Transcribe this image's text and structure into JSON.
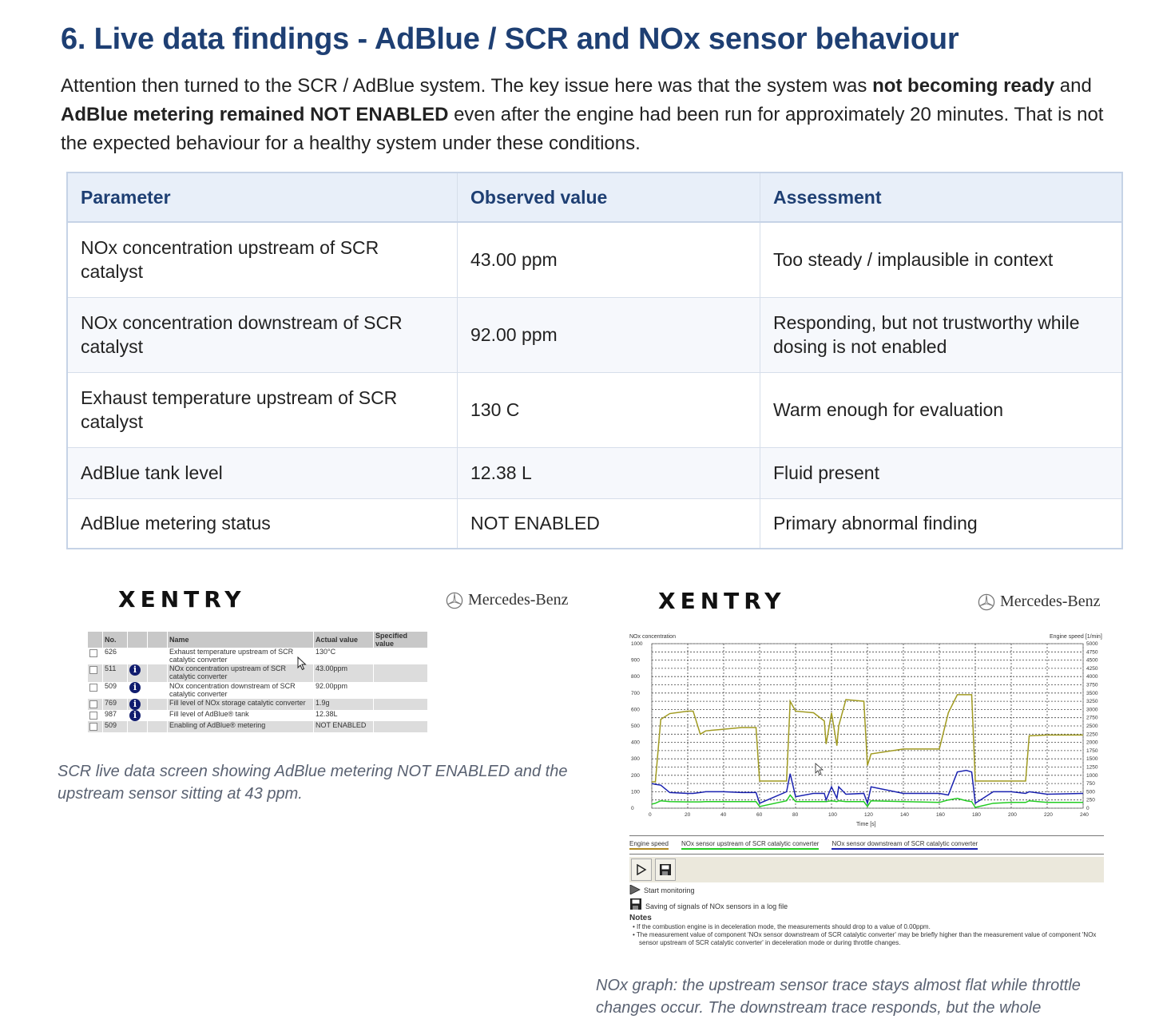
{
  "section": {
    "title": "6. Live data findings - AdBlue / SCR and NOx sensor behaviour",
    "intro_parts": [
      "Attention then turned to the SCR / AdBlue system. The key issue here was that the system was ",
      "not becoming ready",
      " and ",
      "AdBlue metering remained NOT ENABLED",
      " even after the engine had been run for approximately 20 minutes. That is not the expected behaviour for a healthy system under these conditions."
    ]
  },
  "findings_table": {
    "headers": [
      "Parameter",
      "Observed value",
      "Assessment"
    ],
    "rows": [
      {
        "parameter": "NOx concentration upstream of SCR catalyst",
        "value": "43.00 ppm",
        "assessment": "Too steady / implausible in context"
      },
      {
        "parameter": "NOx concentration downstream of SCR catalyst",
        "value": "92.00 ppm",
        "assessment": "Responding, but not trustworthy while dosing is not enabled"
      },
      {
        "parameter": "Exhaust temperature upstream of SCR catalyst",
        "value": "130 C",
        "assessment": "Warm enough for evaluation"
      },
      {
        "parameter": "AdBlue tank level",
        "value": "12.38 L",
        "assessment": "Fluid present"
      },
      {
        "parameter": "AdBlue metering status",
        "value": "NOT ENABLED",
        "assessment": "Primary abnormal finding"
      }
    ]
  },
  "screenshot_left": {
    "brand": "XENTRY",
    "maker": "Mercedes-Benz",
    "headers": [
      "No.",
      "",
      "",
      "Name",
      "Actual value",
      "Specified value"
    ],
    "rows": [
      {
        "no": "626",
        "info": false,
        "name": "Exhaust temperature upstream of SCR catalytic converter",
        "actual": "130°C"
      },
      {
        "no": "511",
        "info": true,
        "name": "NOx concentration upstream of SCR catalytic converter",
        "actual": "43.00ppm"
      },
      {
        "no": "509",
        "info": true,
        "name": "NOx concentration downstream of SCR catalytic converter",
        "actual": "92.00ppm"
      },
      {
        "no": "769",
        "info": true,
        "name": "Fill level of NOx storage catalytic converter",
        "actual": "1.9g"
      },
      {
        "no": "987",
        "info": true,
        "name": "Fill level of AdBlue® tank",
        "actual": "12.38L"
      },
      {
        "no": "509",
        "info": false,
        "name": "Enabling of AdBlue® metering",
        "actual": "NOT ENABLED"
      }
    ],
    "caption": "SCR live data screen showing AdBlue metering NOT ENABLED and the upstream sensor sitting at 43 ppm."
  },
  "screenshot_right": {
    "brand": "XENTRY",
    "maker": "Mercedes-Benz",
    "legend": [
      {
        "label": "Engine speed",
        "color": "#a09a20"
      },
      {
        "label": "NOx sensor upstream of SCR catalytic converter",
        "color": "#22cc22"
      },
      {
        "label": "NOx sensor downstream of SCR catalytic converter",
        "color": "#1a22b0"
      }
    ],
    "toolbar": {
      "play_label": "Start monitoring",
      "save_label": "Saving of signals of NOx sensors in a log file"
    },
    "notes_title": "Notes",
    "notes": [
      "If the combustion engine is in deceleration mode, the measurements should drop to a value of 0.00ppm.",
      "The measurement value of component 'NOx sensor downstream of SCR catalytic converter' may be briefly higher than the measurement value of component 'NOx sensor upstream of SCR catalytic converter' in deceleration mode or during throttle changes."
    ],
    "caption": "NOx graph: the upstream sensor trace stays almost flat while throttle changes occur. The downstream trace responds, but the whole"
  },
  "chart_data": {
    "type": "line",
    "title": "",
    "xlabel": "Time [s]",
    "ylabel": "NOx concentration",
    "y2label": "Engine speed [1/min]",
    "xlim": [
      0,
      240
    ],
    "ylim": [
      0,
      1000
    ],
    "y2lim": [
      0,
      5000
    ],
    "x_ticks": [
      0,
      20,
      40,
      60,
      80,
      100,
      120,
      140,
      160,
      180,
      200,
      220,
      240
    ],
    "y_ticks": [
      0,
      100,
      200,
      300,
      400,
      500,
      600,
      700,
      800,
      900,
      1000
    ],
    "y2_ticks": [
      0,
      250,
      500,
      750,
      1000,
      1250,
      1500,
      1750,
      2000,
      2250,
      2500,
      2750,
      3000,
      3250,
      3500,
      3750,
      4000,
      4250,
      4500,
      4750,
      5000
    ],
    "grid": true,
    "legend_position": "bottom",
    "x": [
      0,
      2,
      5,
      10,
      20,
      23,
      27,
      30,
      40,
      50,
      58,
      60,
      75,
      77,
      80,
      90,
      96,
      97,
      100,
      103,
      104,
      108,
      118,
      120,
      122,
      140,
      160,
      165,
      170,
      175,
      178,
      180,
      190,
      200,
      208,
      210,
      220,
      240
    ],
    "series": [
      {
        "name": "Engine speed",
        "values_y_left_scale": [
          160,
          160,
          540,
          575,
          590,
          590,
          450,
          470,
          480,
          490,
          490,
          165,
          165,
          650,
          590,
          580,
          530,
          390,
          580,
          380,
          500,
          660,
          650,
          260,
          330,
          360,
          360,
          580,
          690,
          690,
          690,
          165,
          165,
          165,
          165,
          440,
          445,
          445
        ]
      },
      {
        "name": "NOx sensor upstream of SCR catalytic converter",
        "values": [
          25,
          30,
          45,
          40,
          38,
          38,
          38,
          40,
          40,
          40,
          40,
          10,
          45,
          80,
          40,
          40,
          40,
          40,
          45,
          40,
          45,
          40,
          40,
          10,
          45,
          40,
          35,
          50,
          60,
          45,
          40,
          5,
          30,
          35,
          35,
          45,
          35,
          35
        ]
      },
      {
        "name": "NOx sensor downstream of SCR catalytic converter",
        "values": [
          150,
          145,
          140,
          95,
          90,
          90,
          95,
          100,
          100,
          95,
          95,
          30,
          100,
          210,
          70,
          90,
          90,
          50,
          130,
          60,
          130,
          85,
          90,
          30,
          130,
          90,
          90,
          80,
          220,
          230,
          220,
          30,
          100,
          100,
          90,
          100,
          85,
          90
        ]
      }
    ]
  }
}
